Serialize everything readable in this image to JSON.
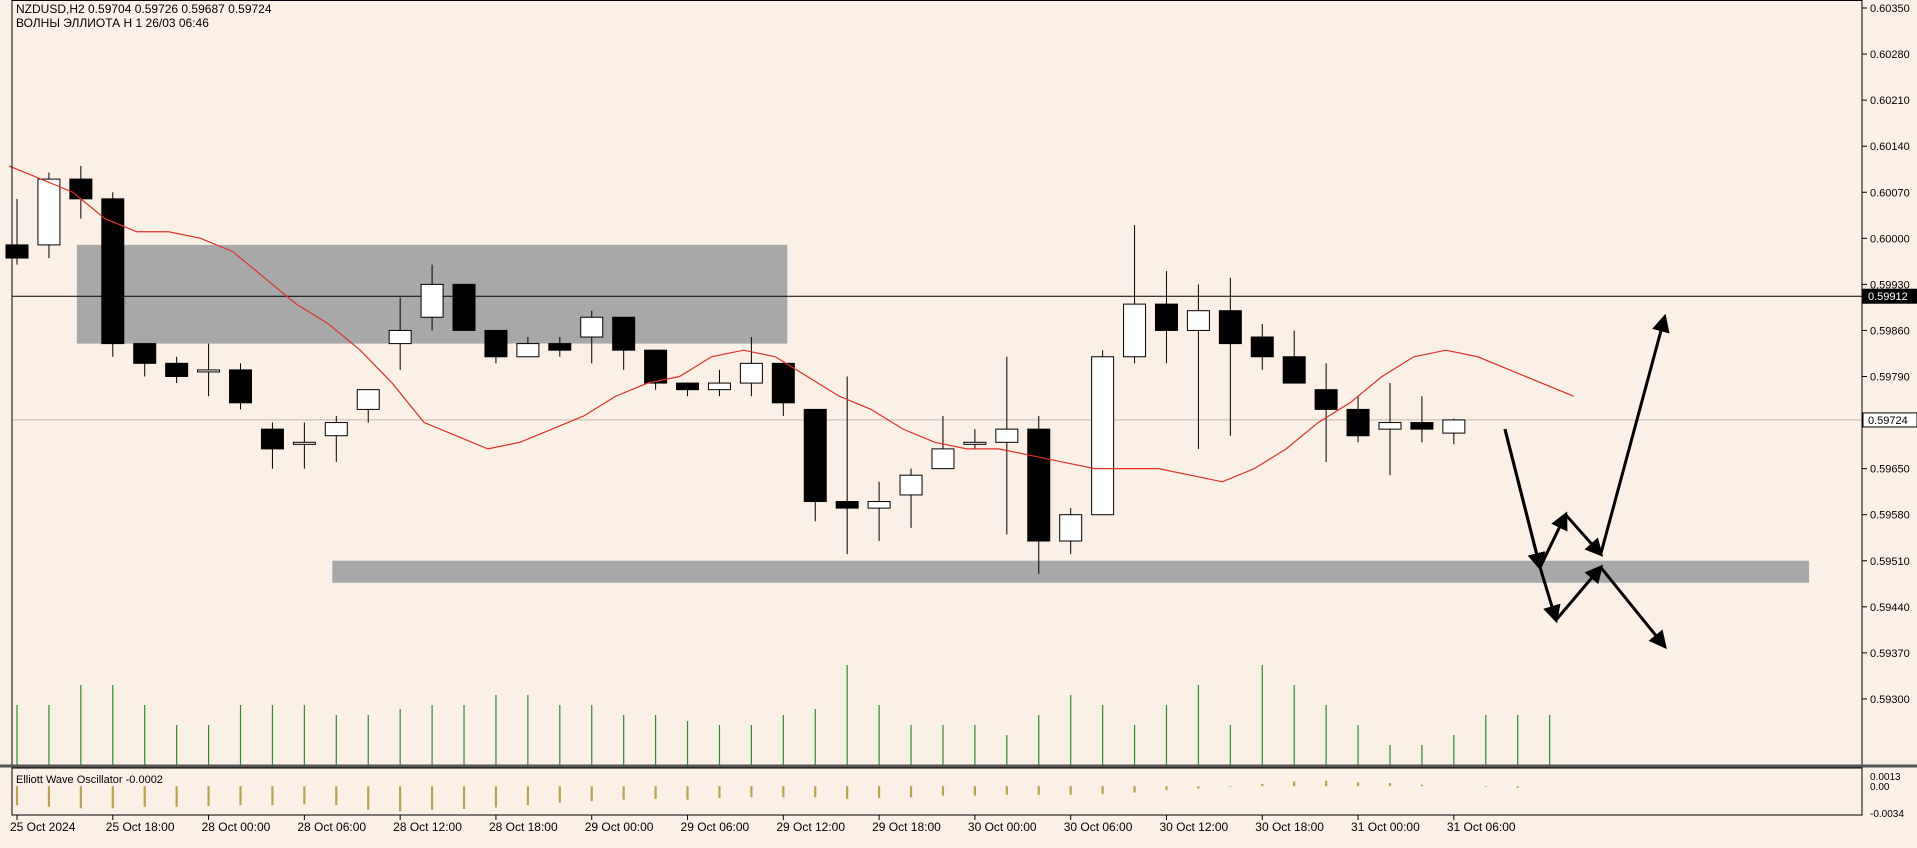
{
  "header": {
    "symbol_line": "NZDUSD,H2  0.59704 0.59726 0.59687 0.59724",
    "indicator_line": "ВОЛНЫ ЭЛЛИОТА H 1 26/03 06:46"
  },
  "oscillator": {
    "label": "Elliott Wave Oscillator -0.0002",
    "ticks": [
      {
        "text": "0.0013",
        "value": 0.0013
      },
      {
        "text": "0.00",
        "value": 0
      },
      {
        "text": "-0.0034",
        "value": -0.0034
      }
    ],
    "values": [
      -0.0024,
      -0.0026,
      -0.0028,
      -0.0028,
      -0.0026,
      -0.0026,
      -0.0025,
      -0.0024,
      -0.0024,
      -0.0023,
      -0.0024,
      -0.003,
      -0.0032,
      -0.003,
      -0.0029,
      -0.0027,
      -0.0024,
      -0.0021,
      -0.0019,
      -0.0017,
      -0.0016,
      -0.0017,
      -0.0015,
      -0.0014,
      -0.0014,
      -0.0014,
      -0.0016,
      -0.0015,
      -0.0014,
      -0.0012,
      -0.0012,
      -0.0011,
      -0.0011,
      -0.0011,
      -0.001,
      -0.0008,
      -0.0005,
      -0.0003,
      -0.0001,
      0.0003,
      0.0006,
      0.0007,
      0.0005,
      0.0004,
      0.0002,
      0,
      -0.0001,
      -0.0002
    ],
    "colors": {
      "positive": "#b8a24e",
      "negative": "#b8a24e"
    }
  },
  "price_labels": [
    {
      "text": "0.59912",
      "value": 0.59912
    },
    {
      "text": "0.59724",
      "value": 0.59724
    }
  ],
  "chart_data": {
    "type": "candlestick",
    "title": "",
    "y_axis": {
      "range": [
        0.5923,
        0.6035
      ],
      "ticks": [
        {
          "text": "0.60350",
          "value": 0.6035
        },
        {
          "text": "0.60280",
          "value": 0.6028
        },
        {
          "text": "0.60210",
          "value": 0.6021
        },
        {
          "text": "0.60140",
          "value": 0.6014
        },
        {
          "text": "0.60070",
          "value": 0.6007
        },
        {
          "text": "0.60000",
          "value": 0.6
        },
        {
          "text": "0.59930",
          "value": 0.5993
        },
        {
          "text": "0.59860",
          "value": 0.5986
        },
        {
          "text": "0.59790",
          "value": 0.5979
        },
        {
          "text": "0.59720",
          "value": 0.5972
        },
        {
          "text": "0.59650",
          "value": 0.5965
        },
        {
          "text": "0.59580",
          "value": 0.5958
        },
        {
          "text": "0.59510",
          "value": 0.5951
        },
        {
          "text": "0.59440",
          "value": 0.5944
        },
        {
          "text": "0.59370",
          "value": 0.5937
        },
        {
          "text": "0.59300",
          "value": 0.593
        }
      ]
    },
    "x_axis": {
      "labels": [
        {
          "text": "25 Oct 2024",
          "index": 0
        },
        {
          "text": "25 Oct 18:00",
          "index": 3
        },
        {
          "text": "28 Oct 00:00",
          "index": 6
        },
        {
          "text": "28 Oct 06:00",
          "index": 9
        },
        {
          "text": "28 Oct 12:00",
          "index": 12
        },
        {
          "text": "28 Oct 18:00",
          "index": 15
        },
        {
          "text": "29 Oct 00:00",
          "index": 18
        },
        {
          "text": "29 Oct 06:00",
          "index": 21
        },
        {
          "text": "29 Oct 12:00",
          "index": 24
        },
        {
          "text": "29 Oct 18:00",
          "index": 27
        },
        {
          "text": "30 Oct 00:00",
          "index": 30
        },
        {
          "text": "30 Oct 06:00",
          "index": 33
        },
        {
          "text": "30 Oct 12:00",
          "index": 36
        },
        {
          "text": "30 Oct 18:00",
          "index": 39
        },
        {
          "text": "31 Oct 00:00",
          "index": 42
        },
        {
          "text": "31 Oct 06:00",
          "index": 45
        }
      ]
    },
    "candles": [
      {
        "o": 0.5999,
        "h": 0.6006,
        "l": 0.5996,
        "c": 0.5997
      },
      {
        "o": 0.5999,
        "h": 0.601,
        "l": 0.5997,
        "c": 0.6009
      },
      {
        "o": 0.6009,
        "h": 0.6011,
        "l": 0.6003,
        "c": 0.6006
      },
      {
        "o": 0.6006,
        "h": 0.6007,
        "l": 0.5982,
        "c": 0.5984
      },
      {
        "o": 0.5984,
        "h": 0.5984,
        "l": 0.5979,
        "c": 0.5981
      },
      {
        "o": 0.5981,
        "h": 0.5982,
        "l": 0.5978,
        "c": 0.5979
      },
      {
        "o": 0.598,
        "h": 0.5984,
        "l": 0.5976,
        "c": 0.598
      },
      {
        "o": 0.598,
        "h": 0.5981,
        "l": 0.5974,
        "c": 0.5975
      },
      {
        "o": 0.5971,
        "h": 0.5972,
        "l": 0.5965,
        "c": 0.5968
      },
      {
        "o": 0.5969,
        "h": 0.5972,
        "l": 0.5965,
        "c": 0.5969
      },
      {
        "o": 0.597,
        "h": 0.5973,
        "l": 0.5966,
        "c": 0.5972
      },
      {
        "o": 0.5974,
        "h": 0.5977,
        "l": 0.5972,
        "c": 0.5977
      },
      {
        "o": 0.5984,
        "h": 0.5991,
        "l": 0.598,
        "c": 0.5986
      },
      {
        "o": 0.5988,
        "h": 0.5996,
        "l": 0.5986,
        "c": 0.5993
      },
      {
        "o": 0.5993,
        "h": 0.5993,
        "l": 0.5986,
        "c": 0.5986
      },
      {
        "o": 0.5986,
        "h": 0.5986,
        "l": 0.5981,
        "c": 0.5982
      },
      {
        "o": 0.5982,
        "h": 0.5985,
        "l": 0.5982,
        "c": 0.5984
      },
      {
        "o": 0.5984,
        "h": 0.5985,
        "l": 0.5982,
        "c": 0.5983
      },
      {
        "o": 0.5985,
        "h": 0.5989,
        "l": 0.5981,
        "c": 0.5988
      },
      {
        "o": 0.5988,
        "h": 0.5988,
        "l": 0.598,
        "c": 0.5983
      },
      {
        "o": 0.5983,
        "h": 0.5983,
        "l": 0.5977,
        "c": 0.5978
      },
      {
        "o": 0.5978,
        "h": 0.5978,
        "l": 0.5976,
        "c": 0.5977
      },
      {
        "o": 0.5977,
        "h": 0.598,
        "l": 0.5976,
        "c": 0.5978
      },
      {
        "o": 0.5978,
        "h": 0.5985,
        "l": 0.5976,
        "c": 0.5981
      },
      {
        "o": 0.5981,
        "h": 0.5981,
        "l": 0.5973,
        "c": 0.5975
      },
      {
        "o": 0.5974,
        "h": 0.5974,
        "l": 0.5957,
        "c": 0.596
      },
      {
        "o": 0.596,
        "h": 0.5979,
        "l": 0.5952,
        "c": 0.5959
      },
      {
        "o": 0.5959,
        "h": 0.5963,
        "l": 0.5954,
        "c": 0.596
      },
      {
        "o": 0.5961,
        "h": 0.5965,
        "l": 0.5956,
        "c": 0.5964
      },
      {
        "o": 0.5965,
        "h": 0.5973,
        "l": 0.5965,
        "c": 0.5968
      },
      {
        "o": 0.5969,
        "h": 0.5971,
        "l": 0.5968,
        "c": 0.5969
      },
      {
        "o": 0.5969,
        "h": 0.5982,
        "l": 0.5955,
        "c": 0.5971
      },
      {
        "o": 0.5971,
        "h": 0.5973,
        "l": 0.5949,
        "c": 0.5954
      },
      {
        "o": 0.5954,
        "h": 0.5959,
        "l": 0.5952,
        "c": 0.5958
      },
      {
        "o": 0.5958,
        "h": 0.5983,
        "l": 0.5958,
        "c": 0.5982
      },
      {
        "o": 0.5982,
        "h": 0.6002,
        "l": 0.5981,
        "c": 0.599
      },
      {
        "o": 0.599,
        "h": 0.5995,
        "l": 0.5981,
        "c": 0.5986
      },
      {
        "o": 0.5986,
        "h": 0.5993,
        "l": 0.5968,
        "c": 0.5989
      },
      {
        "o": 0.5989,
        "h": 0.5994,
        "l": 0.597,
        "c": 0.5984
      },
      {
        "o": 0.5985,
        "h": 0.5987,
        "l": 0.598,
        "c": 0.5982
      },
      {
        "o": 0.5982,
        "h": 0.5986,
        "l": 0.5978,
        "c": 0.5978
      },
      {
        "o": 0.5977,
        "h": 0.5981,
        "l": 0.5966,
        "c": 0.5974
      },
      {
        "o": 0.5974,
        "h": 0.5976,
        "l": 0.5969,
        "c": 0.597
      },
      {
        "o": 0.5971,
        "h": 0.5978,
        "l": 0.5964,
        "c": 0.5972
      },
      {
        "o": 0.5972,
        "h": 0.5976,
        "l": 0.5969,
        "c": 0.5971
      },
      {
        "o": 0.59704,
        "h": 0.59726,
        "l": 0.59687,
        "c": 0.59724
      }
    ],
    "moving_average": [
      0.6011,
      0.6009,
      0.6007,
      0.6003,
      0.6001,
      0.6001,
      0.6,
      0.5998,
      0.5994,
      0.599,
      0.5987,
      0.5983,
      0.5978,
      0.5972,
      0.597,
      0.5968,
      0.5969,
      0.5971,
      0.5973,
      0.5976,
      0.5978,
      0.5979,
      0.5982,
      0.5983,
      0.5982,
      0.5979,
      0.5976,
      0.5974,
      0.5971,
      0.5969,
      0.5968,
      0.5968,
      0.5967,
      0.5966,
      0.5965,
      0.5965,
      0.5965,
      0.5964,
      0.5963,
      0.5965,
      0.5968,
      0.5972,
      0.5975,
      0.5979,
      0.5982,
      0.5983,
      0.5982,
      0.598,
      0.5978,
      0.5976
    ],
    "volumes": [
      30,
      30,
      40,
      40,
      30,
      20,
      20,
      30,
      30,
      30,
      25,
      25,
      28,
      30,
      30,
      35,
      35,
      30,
      30,
      25,
      25,
      22,
      20,
      20,
      25,
      28,
      50,
      30,
      20,
      20,
      20,
      15,
      25,
      35,
      30,
      20,
      30,
      40,
      20,
      50,
      40,
      30,
      20,
      10,
      10,
      15,
      25,
      25,
      25
    ]
  },
  "zones": [
    {
      "name": "upper-zone",
      "start": 2,
      "end": 24,
      "top": 0.5999,
      "bottom": 0.5984
    },
    {
      "name": "lower-zone",
      "start": 10,
      "end": 56,
      "top": 0.5951,
      "bottom": 0.59495
    }
  ],
  "projection_paths": [
    {
      "name": "bullish-path",
      "points": [
        [
          46.6,
          0.5971
        ],
        [
          47.7,
          0.595
        ],
        [
          48.5,
          0.5958
        ],
        [
          49.6,
          0.5952
        ],
        [
          51.6,
          0.5988
        ]
      ]
    },
    {
      "name": "bearish-path",
      "points": [
        [
          46.6,
          0.5971
        ],
        [
          47.7,
          0.595
        ],
        [
          48.2,
          0.5942
        ],
        [
          49.6,
          0.595
        ],
        [
          51.6,
          0.5938
        ]
      ]
    }
  ]
}
